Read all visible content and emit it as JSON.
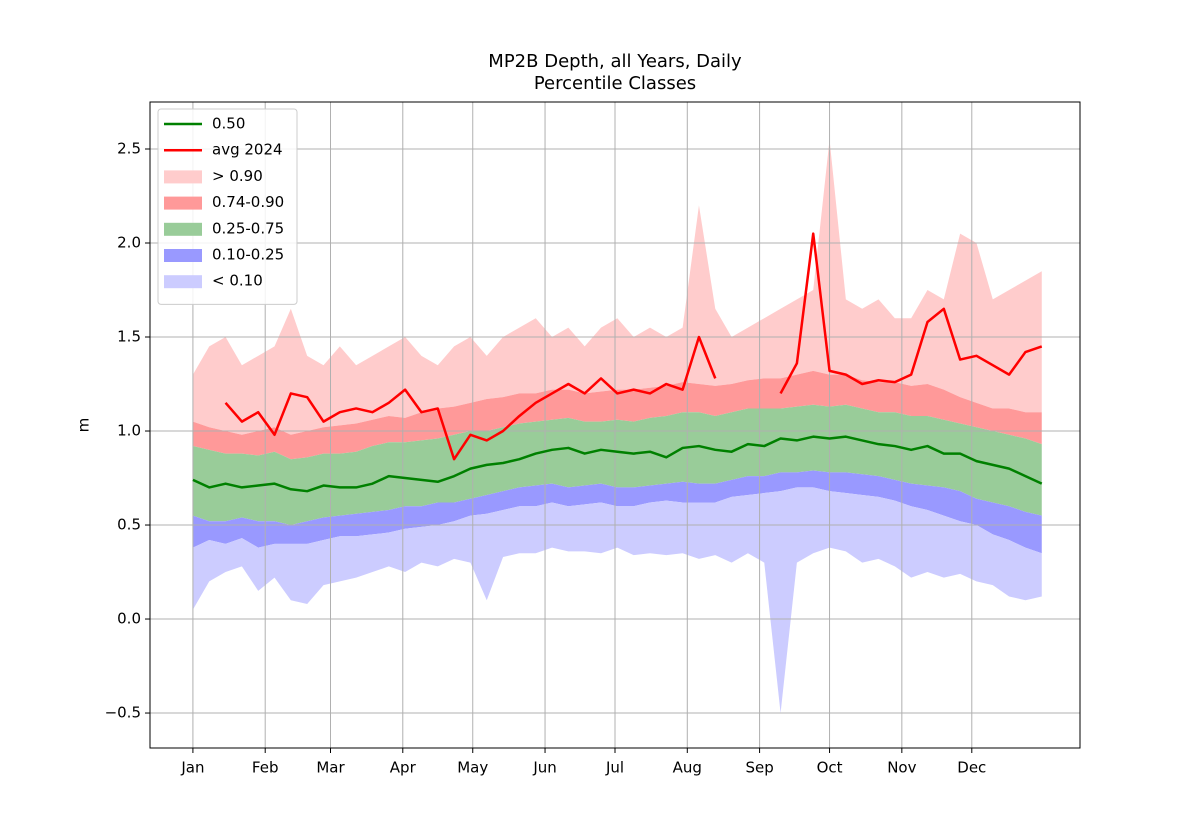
{
  "chart_data": {
    "type": "line",
    "title": "MP2B Depth, all Years, Daily",
    "subtitle": "Percentile Classes",
    "ylabel": "m",
    "x": [
      1,
      8,
      15,
      22,
      29,
      36,
      43,
      50,
      57,
      64,
      71,
      78,
      85,
      92,
      99,
      106,
      113,
      120,
      127,
      134,
      141,
      148,
      155,
      162,
      169,
      176,
      183,
      190,
      197,
      204,
      211,
      218,
      225,
      232,
      239,
      246,
      253,
      260,
      267,
      274,
      281,
      288,
      295,
      302,
      309,
      316,
      323,
      330,
      337,
      344,
      351,
      358,
      365
    ],
    "xlim": [
      -17.4,
      381.4
    ],
    "xticks": [
      {
        "value": 1,
        "label": "Jan"
      },
      {
        "value": 32,
        "label": "Feb"
      },
      {
        "value": 60,
        "label": "Mar"
      },
      {
        "value": 91,
        "label": "Apr"
      },
      {
        "value": 121,
        "label": "May"
      },
      {
        "value": 152,
        "label": "Jun"
      },
      {
        "value": 182,
        "label": "Jul"
      },
      {
        "value": 213,
        "label": "Aug"
      },
      {
        "value": 244,
        "label": "Sep"
      },
      {
        "value": 274,
        "label": "Oct"
      },
      {
        "value": 305,
        "label": "Nov"
      },
      {
        "value": 335,
        "label": "Dec"
      }
    ],
    "ylim": [
      -0.686,
      2.75
    ],
    "yticks": [
      {
        "value": -0.5,
        "label": "−0.5"
      },
      {
        "value": 0,
        "label": "0.0"
      },
      0.5,
      {
        "value": 1,
        "label": "1.0"
      },
      1.5,
      {
        "value": 2,
        "label": "2.0"
      },
      2.5
    ],
    "grid": true,
    "legend": "upper left",
    "series": [
      {
        "name": "0.50",
        "color": "#008000",
        "values": [
          0.74,
          0.7,
          0.72,
          0.7,
          0.71,
          0.72,
          0.69,
          0.68,
          0.71,
          0.7,
          0.7,
          0.72,
          0.76,
          0.75,
          0.74,
          0.73,
          0.76,
          0.8,
          0.82,
          0.83,
          0.85,
          0.88,
          0.9,
          0.91,
          0.88,
          0.9,
          0.89,
          0.88,
          0.89,
          0.86,
          0.91,
          0.92,
          0.9,
          0.89,
          0.93,
          0.92,
          0.96,
          0.95,
          0.97,
          0.96,
          0.97,
          0.95,
          0.93,
          0.92,
          0.9,
          0.92,
          0.88,
          0.88,
          0.84,
          0.82,
          0.8,
          0.76,
          0.72
        ]
      },
      {
        "name": "avg 2024",
        "color": "#ff0000",
        "values": [
          null,
          null,
          1.15,
          1.05,
          1.1,
          0.98,
          1.2,
          1.18,
          1.05,
          1.1,
          1.12,
          1.1,
          1.15,
          1.22,
          1.1,
          1.12,
          0.85,
          0.98,
          0.95,
          1.0,
          1.08,
          1.15,
          1.2,
          1.25,
          1.2,
          1.28,
          1.2,
          1.22,
          1.2,
          1.25,
          1.22,
          1.5,
          1.28,
          null,
          null,
          null,
          1.2,
          1.36,
          2.05,
          1.32,
          1.3,
          1.25,
          1.27,
          1.26,
          1.3,
          1.58,
          1.65,
          1.38,
          1.4,
          1.35,
          1.3,
          1.42,
          1.45
        ]
      },
      {
        "name": "> 0.90",
        "color": "#ffcccc",
        "band": true,
        "values": [
          1.3,
          1.45,
          1.5,
          1.35,
          1.4,
          1.45,
          1.65,
          1.4,
          1.35,
          1.45,
          1.35,
          1.4,
          1.45,
          1.5,
          1.4,
          1.35,
          1.45,
          1.5,
          1.4,
          1.5,
          1.55,
          1.6,
          1.5,
          1.55,
          1.45,
          1.55,
          1.6,
          1.5,
          1.55,
          1.5,
          1.55,
          2.2,
          1.65,
          1.5,
          1.55,
          1.6,
          1.65,
          1.7,
          1.75,
          2.55,
          1.7,
          1.65,
          1.7,
          1.6,
          1.6,
          1.75,
          1.7,
          2.05,
          2.0,
          1.7,
          1.75,
          1.8,
          1.85
        ],
        "low": [
          1.05,
          1.02,
          1.0,
          0.98,
          1.0,
          1.02,
          0.98,
          1.0,
          1.02,
          1.03,
          1.04,
          1.06,
          1.08,
          1.07,
          1.1,
          1.12,
          1.13,
          1.15,
          1.17,
          1.18,
          1.2,
          1.2,
          1.22,
          1.22,
          1.2,
          1.21,
          1.22,
          1.22,
          1.23,
          1.24,
          1.26,
          1.25,
          1.24,
          1.25,
          1.27,
          1.28,
          1.28,
          1.3,
          1.32,
          1.3,
          1.3,
          1.27,
          1.26,
          1.26,
          1.24,
          1.25,
          1.22,
          1.18,
          1.15,
          1.12,
          1.12,
          1.1,
          1.1
        ]
      },
      {
        "name": "0.74-0.90",
        "color": "#ff9999",
        "band": true,
        "values": [
          1.05,
          1.02,
          1.0,
          0.98,
          1.0,
          1.02,
          0.98,
          1.0,
          1.02,
          1.03,
          1.04,
          1.06,
          1.08,
          1.07,
          1.1,
          1.12,
          1.13,
          1.15,
          1.17,
          1.18,
          1.2,
          1.2,
          1.22,
          1.22,
          1.2,
          1.21,
          1.22,
          1.22,
          1.23,
          1.24,
          1.26,
          1.25,
          1.24,
          1.25,
          1.27,
          1.28,
          1.28,
          1.3,
          1.32,
          1.3,
          1.3,
          1.27,
          1.26,
          1.26,
          1.24,
          1.25,
          1.22,
          1.18,
          1.15,
          1.12,
          1.12,
          1.1,
          1.1
        ],
        "low": [
          0.92,
          0.9,
          0.88,
          0.88,
          0.87,
          0.89,
          0.85,
          0.86,
          0.88,
          0.88,
          0.89,
          0.92,
          0.94,
          0.94,
          0.95,
          0.96,
          0.98,
          1.0,
          1.0,
          1.02,
          1.04,
          1.05,
          1.06,
          1.07,
          1.05,
          1.05,
          1.06,
          1.05,
          1.07,
          1.08,
          1.1,
          1.1,
          1.08,
          1.1,
          1.12,
          1.12,
          1.12,
          1.13,
          1.14,
          1.13,
          1.14,
          1.12,
          1.1,
          1.1,
          1.08,
          1.08,
          1.06,
          1.04,
          1.02,
          1.0,
          0.98,
          0.96,
          0.93
        ]
      },
      {
        "name": "0.25-0.75",
        "color": "#99cc99",
        "band": true,
        "values": [
          0.92,
          0.9,
          0.88,
          0.88,
          0.87,
          0.89,
          0.85,
          0.86,
          0.88,
          0.88,
          0.89,
          0.92,
          0.94,
          0.94,
          0.95,
          0.96,
          0.98,
          1.0,
          1.0,
          1.02,
          1.04,
          1.05,
          1.06,
          1.07,
          1.05,
          1.05,
          1.06,
          1.05,
          1.07,
          1.08,
          1.1,
          1.1,
          1.08,
          1.1,
          1.12,
          1.12,
          1.12,
          1.13,
          1.14,
          1.13,
          1.14,
          1.12,
          1.1,
          1.1,
          1.08,
          1.08,
          1.06,
          1.04,
          1.02,
          1.0,
          0.98,
          0.96,
          0.93
        ],
        "low": [
          0.55,
          0.52,
          0.52,
          0.54,
          0.52,
          0.52,
          0.5,
          0.52,
          0.54,
          0.55,
          0.56,
          0.57,
          0.58,
          0.6,
          0.6,
          0.62,
          0.62,
          0.64,
          0.66,
          0.68,
          0.7,
          0.71,
          0.72,
          0.7,
          0.71,
          0.72,
          0.7,
          0.7,
          0.71,
          0.72,
          0.73,
          0.72,
          0.72,
          0.74,
          0.76,
          0.76,
          0.78,
          0.78,
          0.79,
          0.78,
          0.78,
          0.77,
          0.76,
          0.74,
          0.72,
          0.71,
          0.7,
          0.68,
          0.64,
          0.62,
          0.6,
          0.57,
          0.55
        ]
      },
      {
        "name": "0.10-0.25",
        "color": "#9999ff",
        "band": true,
        "values": [
          0.55,
          0.52,
          0.52,
          0.54,
          0.52,
          0.52,
          0.5,
          0.52,
          0.54,
          0.55,
          0.56,
          0.57,
          0.58,
          0.6,
          0.6,
          0.62,
          0.62,
          0.64,
          0.66,
          0.68,
          0.7,
          0.71,
          0.72,
          0.7,
          0.71,
          0.72,
          0.7,
          0.7,
          0.71,
          0.72,
          0.73,
          0.72,
          0.72,
          0.74,
          0.76,
          0.76,
          0.78,
          0.78,
          0.79,
          0.78,
          0.78,
          0.77,
          0.76,
          0.74,
          0.72,
          0.71,
          0.7,
          0.68,
          0.64,
          0.62,
          0.6,
          0.57,
          0.55
        ],
        "low": [
          0.38,
          0.42,
          0.4,
          0.43,
          0.38,
          0.4,
          0.4,
          0.4,
          0.42,
          0.44,
          0.44,
          0.45,
          0.46,
          0.48,
          0.49,
          0.5,
          0.52,
          0.55,
          0.56,
          0.58,
          0.6,
          0.6,
          0.62,
          0.6,
          0.61,
          0.62,
          0.6,
          0.6,
          0.62,
          0.63,
          0.62,
          0.62,
          0.62,
          0.65,
          0.66,
          0.67,
          0.68,
          0.7,
          0.7,
          0.68,
          0.67,
          0.66,
          0.65,
          0.63,
          0.6,
          0.58,
          0.55,
          0.52,
          0.5,
          0.45,
          0.42,
          0.38,
          0.35
        ]
      },
      {
        "name": "< 0.10",
        "color": "#ccccff",
        "band": true,
        "values": [
          0.38,
          0.42,
          0.4,
          0.43,
          0.38,
          0.4,
          0.4,
          0.4,
          0.42,
          0.44,
          0.44,
          0.45,
          0.46,
          0.48,
          0.49,
          0.5,
          0.52,
          0.55,
          0.56,
          0.58,
          0.6,
          0.6,
          0.62,
          0.6,
          0.61,
          0.62,
          0.6,
          0.6,
          0.62,
          0.63,
          0.62,
          0.62,
          0.62,
          0.65,
          0.66,
          0.67,
          0.68,
          0.7,
          0.7,
          0.68,
          0.67,
          0.66,
          0.65,
          0.63,
          0.6,
          0.58,
          0.55,
          0.52,
          0.5,
          0.45,
          0.42,
          0.38,
          0.35
        ],
        "low": [
          0.05,
          0.2,
          0.25,
          0.28,
          0.15,
          0.22,
          0.1,
          0.08,
          0.18,
          0.2,
          0.22,
          0.25,
          0.28,
          0.25,
          0.3,
          0.28,
          0.32,
          0.3,
          0.1,
          0.33,
          0.35,
          0.35,
          0.38,
          0.36,
          0.36,
          0.35,
          0.38,
          0.34,
          0.35,
          0.34,
          0.35,
          0.32,
          0.34,
          0.3,
          0.35,
          0.3,
          -0.5,
          0.3,
          0.35,
          0.38,
          0.36,
          0.3,
          0.32,
          0.28,
          0.22,
          0.25,
          0.22,
          0.24,
          0.2,
          0.18,
          0.12,
          0.1,
          0.12
        ]
      }
    ]
  }
}
